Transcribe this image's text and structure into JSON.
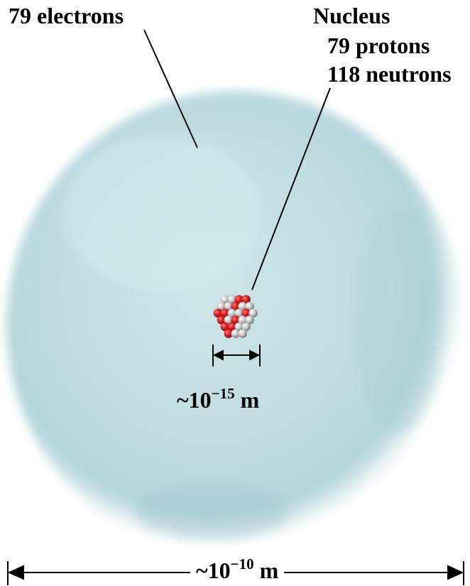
{
  "labels": {
    "electrons": "79 electrons",
    "nucleus_title": "Nucleus",
    "protons": "79 protons",
    "neutrons": "118 neutrons"
  },
  "dimensions": {
    "nucleus": {
      "prefix": "~10",
      "exponent": "−15",
      "unit": " m"
    },
    "atom": {
      "prefix": "~10",
      "exponent": "−10",
      "unit": " m"
    }
  },
  "colors": {
    "cloud": "#c2dfe2",
    "cloud_edge": "#a9cdd3",
    "proton": "#d81e1e",
    "neutron": "#c7c7c7"
  }
}
